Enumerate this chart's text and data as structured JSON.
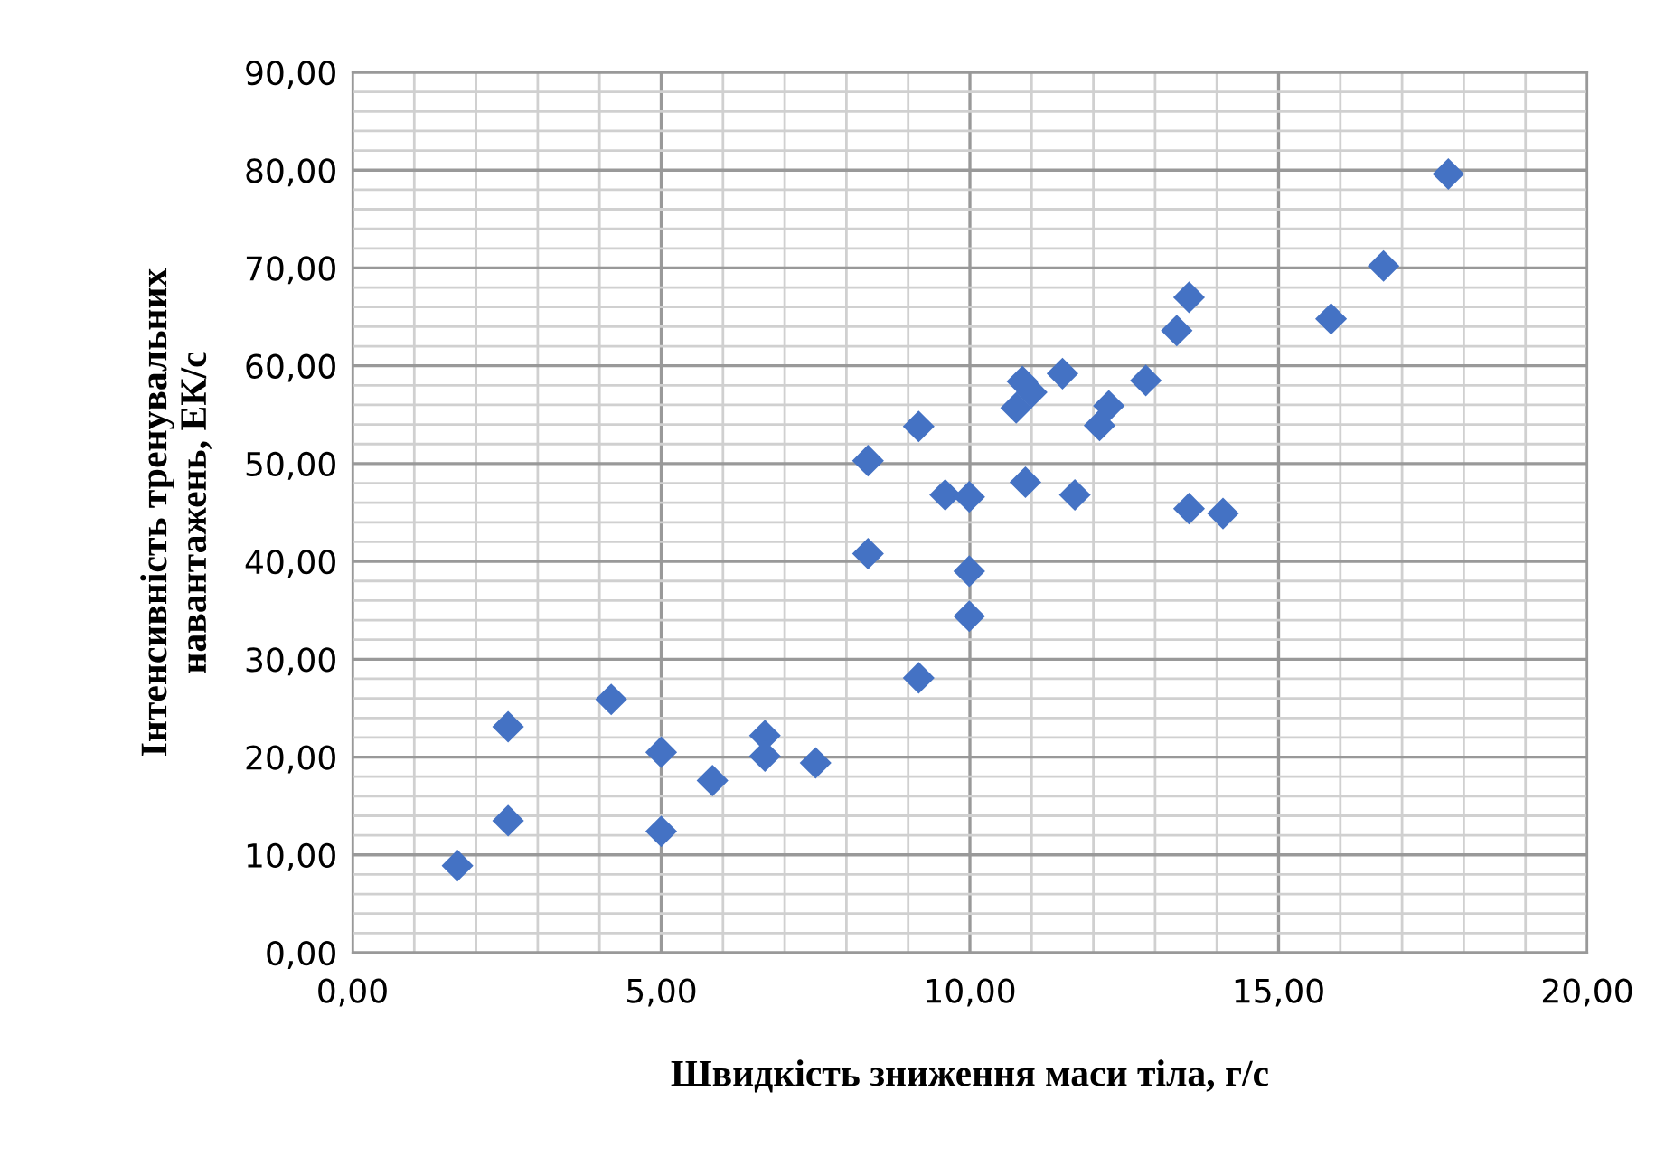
{
  "chart_data": {
    "type": "scatter",
    "xlabel": "Швидкість зниження маси тіла, г/с",
    "ylabel": "Інтенсивність тренувальних навантажень, ЕК/с",
    "x": [
      1.7,
      2.52,
      2.52,
      4.19,
      5.0,
      5.0,
      5.83,
      6.68,
      6.68,
      7.5,
      8.35,
      8.35,
      9.17,
      9.17,
      9.6,
      9.99,
      9.99,
      9.99,
      10.75,
      10.85,
      11.0,
      10.9,
      11.5,
      11.7,
      12.1,
      12.25,
      12.85,
      13.35,
      13.55,
      13.55,
      14.1,
      15.85,
      16.7,
      17.75
    ],
    "series": [
      {
        "color": "#4472c4",
        "values": [
          8.9,
          13.5,
          23.1,
          25.9,
          20.5,
          12.4,
          17.6,
          22.2,
          20.1,
          19.4,
          50.3,
          40.8,
          28.1,
          53.8,
          46.8,
          46.6,
          39.0,
          34.4,
          55.7,
          58.4,
          57.3,
          48.1,
          59.2,
          46.8,
          53.9,
          55.9,
          58.5,
          63.6,
          67.0,
          45.4,
          44.9,
          64.8,
          70.2,
          79.6
        ]
      }
    ],
    "xlim": [
      0,
      20
    ],
    "ylim": [
      0,
      90
    ],
    "xticks": [
      {
        "value": 0,
        "label": "0,00"
      },
      {
        "value": 5,
        "label": "5,00"
      },
      {
        "value": 10,
        "label": "10,00"
      },
      {
        "value": 15,
        "label": "15,00"
      },
      {
        "value": 20,
        "label": "20,00"
      }
    ],
    "yticks": [
      {
        "value": 0,
        "label": "0,00"
      },
      {
        "value": 10,
        "label": "10,00"
      },
      {
        "value": 20,
        "label": "20,00"
      },
      {
        "value": 30,
        "label": "30,00"
      },
      {
        "value": 40,
        "label": "40,00"
      },
      {
        "value": 50,
        "label": "50,00"
      },
      {
        "value": 60,
        "label": "60,00"
      },
      {
        "value": 70,
        "label": "70,00"
      },
      {
        "value": 80,
        "label": "80,00"
      },
      {
        "value": 90,
        "label": "90,00"
      }
    ],
    "grid": true,
    "marker": "diamond"
  }
}
